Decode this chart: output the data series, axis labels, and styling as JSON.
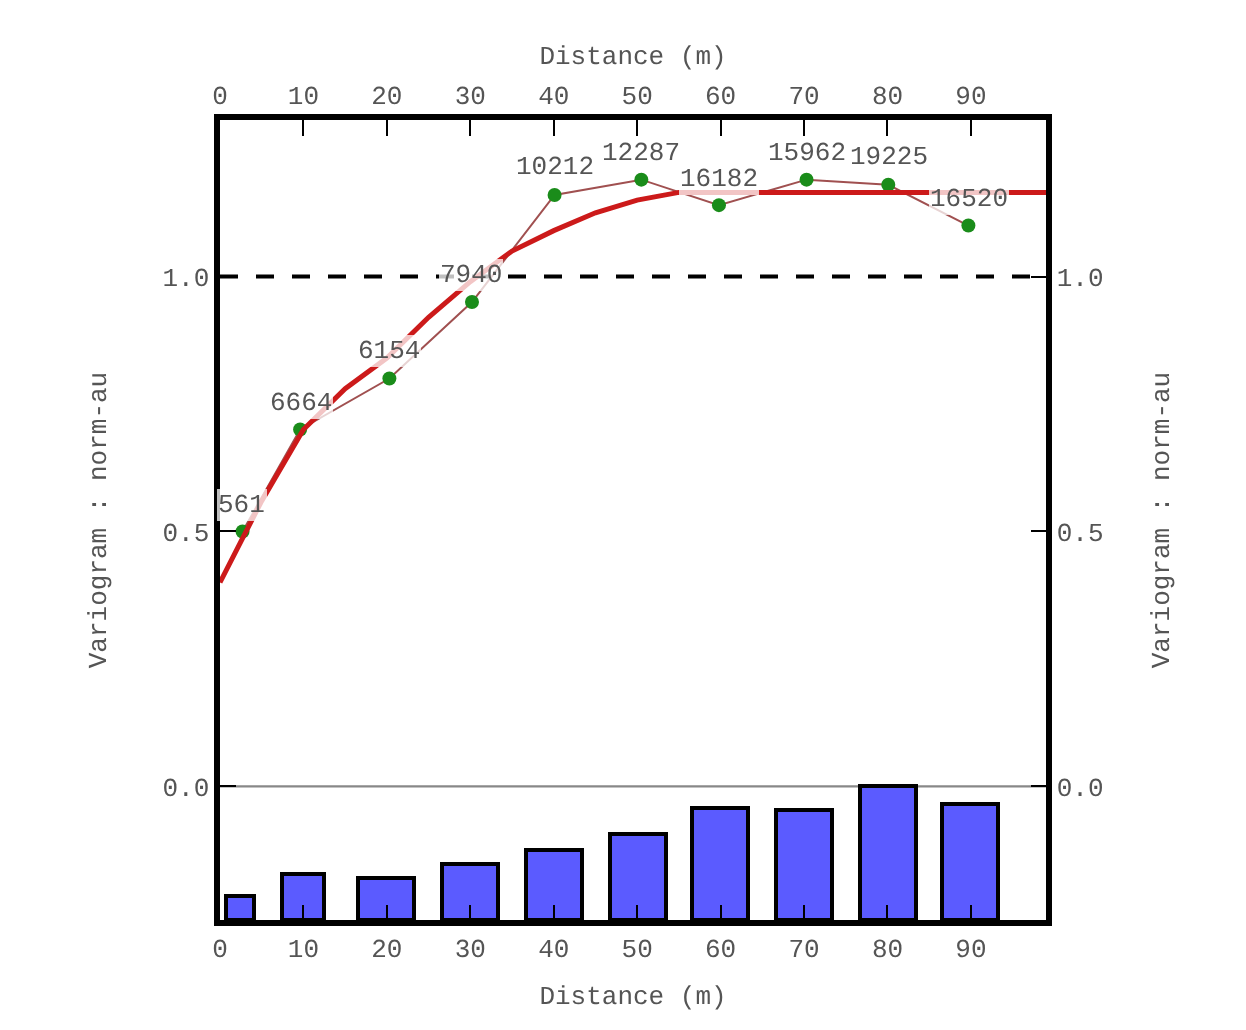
{
  "chart_data": {
    "type": "line",
    "xlabel": "Distance (m)",
    "x2label": "Distance (m)",
    "ylabel": "Variogram : norm-au",
    "y2label": "Variogram : norm-au",
    "xlim": [
      0,
      99
    ],
    "xticks": [
      0,
      10,
      20,
      30,
      40,
      50,
      60,
      70,
      80,
      90
    ],
    "x2lim": [
      0,
      99
    ],
    "x2ticks": [
      0,
      10,
      20,
      30,
      40,
      50,
      60,
      70,
      80,
      90
    ],
    "ylim": [
      -0.262,
      1.307
    ],
    "yticks": [
      {
        "value": 0,
        "label": "0.0"
      },
      {
        "value": 0.5,
        "label": "0.5"
      },
      {
        "value": 1,
        "label": "1.0"
      }
    ],
    "y2lim": [
      -0.262,
      1.307
    ],
    "y2ticks": [
      {
        "value": 0,
        "label": "0.0"
      },
      {
        "value": 0.5,
        "label": "0.5"
      },
      {
        "value": 1,
        "label": "1.0"
      }
    ],
    "grid": false,
    "series": [
      {
        "type": "bar",
        "color": "#5b5bff",
        "x": [
          2.5,
          10,
          20,
          30,
          40,
          50,
          60,
          70,
          80,
          90
        ],
        "base": [
          -0.262,
          -0.262,
          -0.262,
          -0.262,
          -0.262,
          -0.262,
          -0.262,
          -0.262,
          -0.262,
          -0.262
        ],
        "values": [
          0.049,
          0.092,
          0.083,
          0.109,
          0.137,
          0.167,
          0.219,
          0.215,
          0.262,
          0.226
        ]
      },
      {
        "type": "line",
        "color": "#a05050",
        "marker": "none",
        "x": [
          2.7,
          9.6,
          20.3,
          30.2,
          40.1,
          50.5,
          59.8,
          70.3,
          80.1,
          89.7
        ],
        "values": [
          0.5,
          0.7,
          0.8,
          0.95,
          1.16,
          1.19,
          1.14,
          1.19,
          1.18,
          1.1
        ]
      },
      {
        "type": "scatter",
        "color": "#1a8c1a",
        "marker": "circle",
        "x": [
          2.7,
          9.6,
          20.3,
          30.2,
          40.1,
          50.5,
          59.8,
          70.3,
          80.1,
          89.7
        ],
        "values": [
          0.5,
          0.7,
          0.8,
          0.95,
          1.16,
          1.19,
          1.14,
          1.19,
          1.18,
          1.1
        ]
      },
      {
        "color": "#cc1a1a",
        "marker": "none",
        "x": [
          0,
          2.5,
          5,
          10,
          15,
          20,
          25,
          30,
          35,
          40,
          45,
          50,
          55,
          60,
          99
        ],
        "values": [
          0.4,
          0.48,
          0.56,
          0.7,
          0.78,
          0.84,
          0.92,
          0.99,
          1.05,
          1.09,
          1.125,
          1.15,
          1.165,
          1.165,
          1.165
        ]
      }
    ],
    "annotations": [
      {
        "text": "561",
        "x": 2.7,
        "y": 0.5
      },
      {
        "text": "6664",
        "x": 9.6,
        "y": 0.7
      },
      {
        "text": "6154",
        "x": 20.3,
        "y": 0.8
      },
      {
        "text": "7940",
        "x": 30.2,
        "y": 0.95
      },
      {
        "text": "10212",
        "x": 40.1,
        "y": 1.16
      },
      {
        "text": "12287",
        "x": 50.5,
        "y": 1.19
      },
      {
        "text": "16182",
        "x": 59.8,
        "y": 1.14
      },
      {
        "text": "15962",
        "x": 70.3,
        "y": 1.19
      },
      {
        "text": "19225",
        "x": 80.1,
        "y": 1.18
      },
      {
        "text": "16520",
        "x": 89.7,
        "y": 1.1
      }
    ],
    "ref_lines": [
      {
        "axis": "y",
        "value": 1,
        "color": "#000000",
        "line_style": "dashed"
      },
      {
        "axis": "y",
        "value": 0,
        "color": "#888888",
        "line_style": "solid"
      }
    ]
  }
}
